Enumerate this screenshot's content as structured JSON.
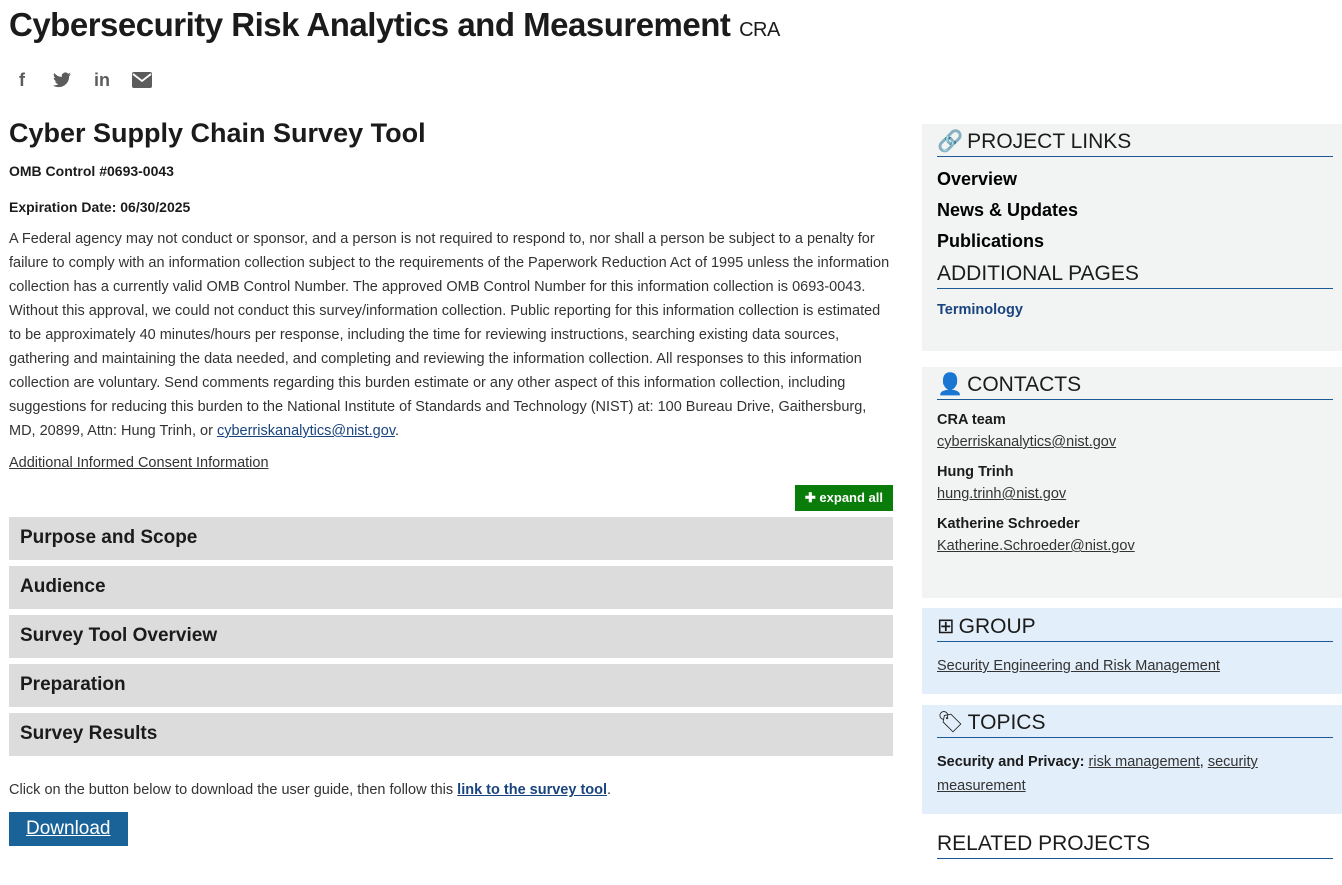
{
  "header": {
    "title": "Cybersecurity Risk Analytics and Measurement",
    "acronym": "CRA"
  },
  "social": [
    "facebook-icon",
    "twitter-icon",
    "linkedin-icon",
    "email-icon"
  ],
  "main": {
    "title": "Cyber Supply Chain Survey Tool",
    "omb": "OMB Control #0693-0043",
    "expiration": "Expiration Date:  06/30/2025",
    "notice": "A Federal agency may not conduct or sponsor, and a person is not required to respond to, nor shall a person be subject to a penalty for failure to comply with an information collection subject to the requirements of the Paperwork Reduction Act of 1995 unless the information collection has a currently valid OMB Control Number.  The approved OMB Control Number for this information collection is 0693-0043.  Without this approval, we could not conduct this survey/information collection.  Public reporting for this information collection is estimated to be approximately 40 minutes/hours per response, including the time for reviewing instructions, searching existing data sources, gathering and maintaining the data needed, and completing and reviewing the information collection.  All responses to this information collection are voluntary. Send comments regarding this burden estimate or any other aspect of this information collection, including suggestions for reducing this burden to the National Institute of Standards and Technology (NIST) at: 100 Bureau Drive, Gaithersburg, MD, 20899, Attn: Hung Trinh, or ",
    "notice_email": "cyberriskanalytics@nist.gov",
    "consent_link": "Additional Informed Consent Information",
    "expand_all": "expand all",
    "accordion": [
      "Purpose and Scope",
      "Audience",
      "Survey Tool Overview",
      "Preparation",
      "Survey Results"
    ],
    "download_text": "Click on the button below to download the user guide, then follow this ",
    "survey_link": "link to the survey tool",
    "download_button": "Download"
  },
  "sidebar": {
    "project_links": {
      "title": "PROJECT LINKS",
      "items": [
        "Overview",
        "News & Updates",
        "Publications"
      ]
    },
    "additional_pages": {
      "title": "ADDITIONAL PAGES",
      "items": [
        "Terminology"
      ]
    },
    "contacts": {
      "title": "CONTACTS",
      "items": [
        {
          "name": "CRA team",
          "email": "cyberriskanalytics@nist.gov"
        },
        {
          "name": "Hung Trinh",
          "email": "hung.trinh@nist.gov"
        },
        {
          "name": "Katherine Schroeder",
          "email": "Katherine.Schroeder@nist.gov"
        }
      ]
    },
    "group": {
      "title": "GROUP",
      "link": "Security Engineering and Risk Management"
    },
    "topics": {
      "title": "TOPICS",
      "label": "Security and Privacy:",
      "links": [
        "risk management",
        "security measurement"
      ]
    },
    "related": {
      "title": "RELATED PROJECTS"
    }
  },
  "colors": {
    "expand": "#0a7c0a",
    "download": "#1a6399",
    "rule": "#1a5a96"
  }
}
